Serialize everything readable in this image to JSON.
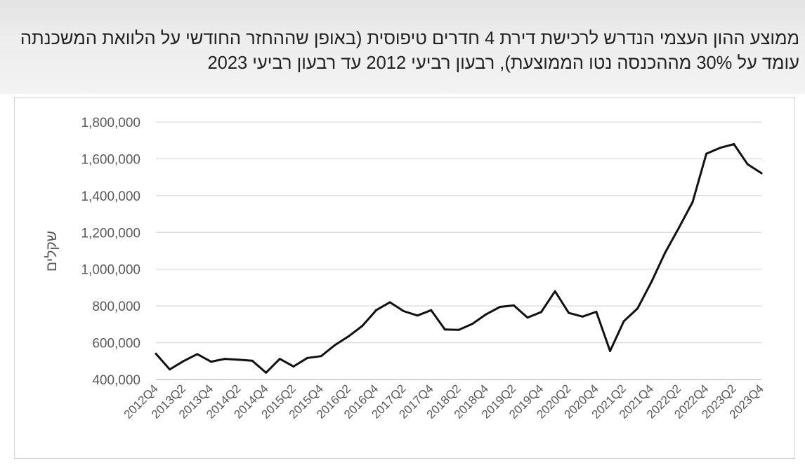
{
  "header": {
    "title": "ממוצע ההון העצמי הנדרש לרכישת דירת 4 חדרים טיפוסית (באופן שההחזר החודשי על הלוואת המשכנתה עומד על 30% מההכנסה נטו הממוצעת), רבעון רביעי 2012 עד רבעון רביעי 2023"
  },
  "chart_data": {
    "type": "line",
    "title": "ממוצע ההון העצמי הנדרש לרכישת דירת 4 חדרים טיפוסית (באופן שההחזר החודשי על הלוואת המשכנתה עומד על 30% מההכנסה נטו הממוצעת), רבעון רביעי 2012 עד רבעון רביעי 2023",
    "xlabel": "",
    "ylabel": "שקלים",
    "ylim": [
      400000,
      1800000
    ],
    "yticks": [
      400000,
      600000,
      800000,
      1000000,
      1200000,
      1400000,
      1600000,
      1800000
    ],
    "ytick_labels": [
      "400,000",
      "600,000",
      "800,000",
      "1,000,000",
      "1,200,000",
      "1,400,000",
      "1,600,000",
      "1,800,000"
    ],
    "grid": "horizontal",
    "legend": "none",
    "line_color": "#111111",
    "x": [
      "2012Q4",
      "2013Q1",
      "2013Q2",
      "2013Q3",
      "2013Q4",
      "2014Q1",
      "2014Q2",
      "2014Q3",
      "2014Q4",
      "2015Q1",
      "2015Q2",
      "2015Q3",
      "2015Q4",
      "2016Q1",
      "2016Q2",
      "2016Q3",
      "2016Q4",
      "2017Q1",
      "2017Q2",
      "2017Q3",
      "2017Q4",
      "2018Q1",
      "2018Q2",
      "2018Q3",
      "2018Q4",
      "2019Q1",
      "2019Q2",
      "2019Q3",
      "2019Q4",
      "2020Q1",
      "2020Q2",
      "2020Q3",
      "2020Q4",
      "2021Q1",
      "2021Q2",
      "2021Q3",
      "2021Q4",
      "2022Q1",
      "2022Q2",
      "2022Q3",
      "2022Q4",
      "2023Q1",
      "2023Q2",
      "2023Q3",
      "2023Q4"
    ],
    "x_tick_labels": [
      "2012Q4",
      "2013Q2",
      "2013Q4",
      "2014Q2",
      "2014Q4",
      "2015Q2",
      "2015Q4",
      "2016Q2",
      "2016Q4",
      "2017Q2",
      "2017Q4",
      "2018Q2",
      "2018Q4",
      "2019Q2",
      "2019Q4",
      "2020Q2",
      "2020Q4",
      "2021Q2",
      "2021Q4",
      "2022Q2",
      "2022Q4",
      "2023Q2",
      "2023Q4"
    ],
    "values": [
      540000,
      455000,
      500000,
      538000,
      497000,
      512000,
      508000,
      502000,
      437000,
      512000,
      471000,
      517000,
      527000,
      587000,
      635000,
      692000,
      777000,
      820000,
      772000,
      748000,
      777000,
      672000,
      670000,
      703000,
      755000,
      795000,
      803000,
      737000,
      767000,
      880000,
      762000,
      742000,
      768000,
      555000,
      717000,
      787000,
      930000,
      1090000,
      1225000,
      1365000,
      1628000,
      1660000,
      1680000,
      1570000,
      1522000
    ]
  }
}
